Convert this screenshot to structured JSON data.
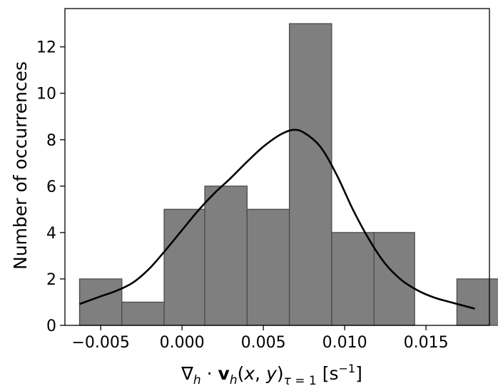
{
  "chart_data": {
    "type": "bar",
    "subtype": "histogram",
    "bins": [
      {
        "x0": -0.0063,
        "x1": -0.0037,
        "count": 2
      },
      {
        "x0": -0.0037,
        "x1": -0.0011,
        "count": 1
      },
      {
        "x0": -0.0011,
        "x1": 0.0014,
        "count": 5
      },
      {
        "x0": 0.0014,
        "x1": 0.004,
        "count": 6
      },
      {
        "x0": 0.004,
        "x1": 0.0066,
        "count": 5
      },
      {
        "x0": 0.0066,
        "x1": 0.0092,
        "count": 13
      },
      {
        "x0": 0.0092,
        "x1": 0.0118,
        "count": 4
      },
      {
        "x0": 0.0118,
        "x1": 0.0143,
        "count": 4
      },
      {
        "x0": 0.0143,
        "x1": 0.0169,
        "count": 0
      },
      {
        "x0": 0.0169,
        "x1": 0.0195,
        "count": 2
      }
    ],
    "bar_color": "#7f7f7f",
    "bar_edge_color": "#4a4a4a",
    "curve": {
      "description": "kernel density estimate",
      "color": "#000000",
      "x": [
        -0.0063,
        -0.005,
        -0.004,
        -0.003,
        -0.002,
        -0.001,
        0.0,
        0.001,
        0.002,
        0.003,
        0.004,
        0.005,
        0.006,
        0.0068,
        0.0075,
        0.0085,
        0.0095,
        0.0105,
        0.0115,
        0.0125,
        0.0135,
        0.0145,
        0.0155,
        0.0165,
        0.018
      ],
      "y": [
        0.92,
        1.25,
        1.5,
        1.85,
        2.45,
        3.25,
        4.1,
        4.95,
        5.7,
        6.35,
        7.05,
        7.7,
        8.2,
        8.42,
        8.3,
        7.7,
        6.5,
        5.0,
        3.7,
        2.65,
        1.95,
        1.5,
        1.2,
        1.0,
        0.72
      ]
    },
    "xlim": [
      -0.0072,
      0.0189
    ],
    "ylim": [
      0,
      13.65
    ],
    "xticks": [
      -0.005,
      0.0,
      0.005,
      0.01,
      0.015
    ],
    "xtick_labels": [
      "−0.005",
      "0.000",
      "0.005",
      "0.010",
      "0.015"
    ],
    "yticks": [
      0,
      2,
      4,
      6,
      8,
      10,
      12
    ],
    "ytick_labels": [
      "0",
      "2",
      "4",
      "6",
      "8",
      "10",
      "12"
    ],
    "title": "",
    "xlabel": "∇h · vh(x, y)τ = 1 [s−1]",
    "ylabel": "Number of occurrences",
    "grid": false,
    "legend": "none"
  }
}
